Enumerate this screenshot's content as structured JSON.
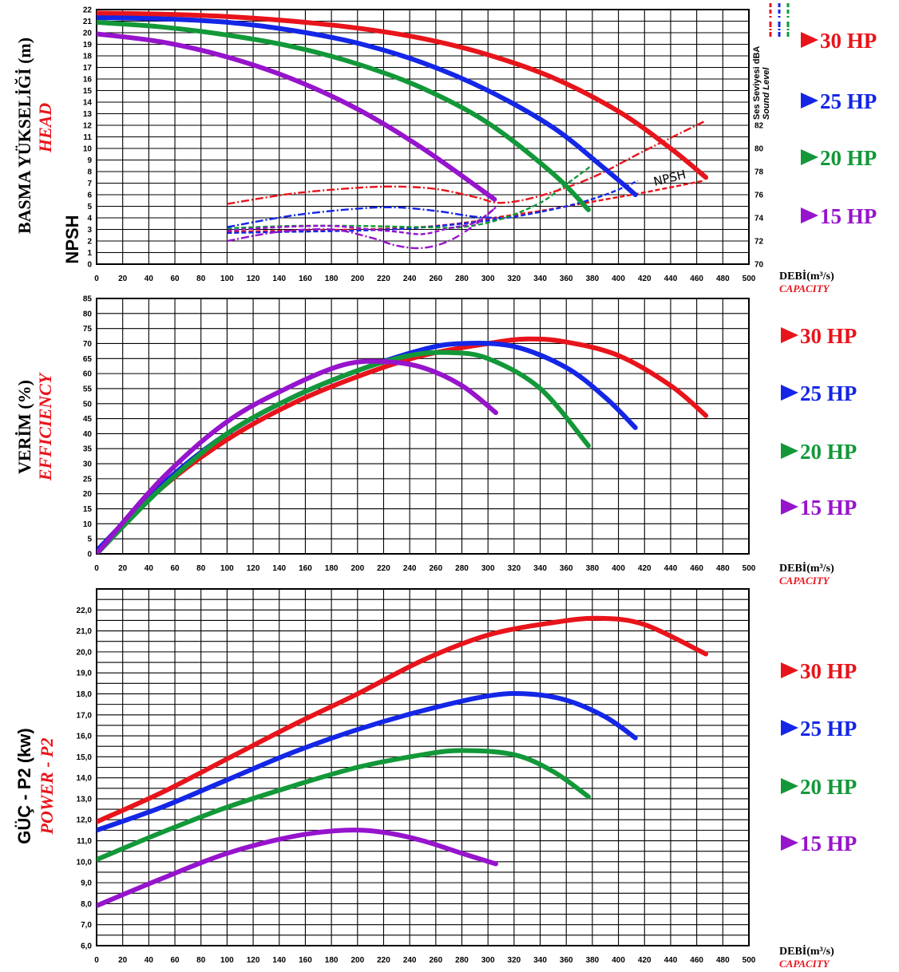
{
  "colors": {
    "hp30": "#e8141b",
    "hp25": "#1426e6",
    "hp20": "#139839",
    "hp15": "#9614cc",
    "grid": "#000000"
  },
  "legend": [
    "30  HP",
    "25  HP",
    "20 HP",
    "15 HP"
  ],
  "x_axis": {
    "title_tr": "DEBİ(m³/s)",
    "title_en": "CAPACITY",
    "ticks": [
      "0",
      "20",
      "40",
      "60",
      "80",
      "100",
      "120",
      "140",
      "160",
      "180",
      "200",
      "220",
      "240",
      "260",
      "280",
      "300",
      "320",
      "340",
      "360",
      "380",
      "400",
      "420",
      "440",
      "460",
      "480",
      "500"
    ]
  },
  "chart_data": [
    {
      "type": "line",
      "ylabel_tr": "BASMA YÜKSELİĞİ (m)",
      "ylabel_en": "HEAD",
      "ylabel_npsh": "NPSH",
      "right_axis_label_tr": "Ses Seviyesi dBA",
      "right_axis_label_en": "Sound Level",
      "npsh_annotation": "NPSH",
      "xlim": [
        0,
        500
      ],
      "ylim": [
        0,
        22
      ],
      "y_ticks": [
        "0",
        "1",
        "2",
        "3",
        "4",
        "5",
        "6",
        "7",
        "8",
        "9",
        "10",
        "11",
        "12",
        "13",
        "14",
        "15",
        "16",
        "17",
        "18",
        "19",
        "20",
        "21",
        "22"
      ],
      "right_ticks": [
        "70",
        "72",
        "74",
        "76",
        "78",
        "80",
        "82"
      ],
      "right_ylim": [
        70,
        92
      ],
      "series": [
        {
          "name": "30  HP",
          "x": [
            0,
            50,
            100,
            150,
            200,
            250,
            300,
            350,
            400,
            440,
            467
          ],
          "y": [
            21.7,
            21.6,
            21.4,
            21.0,
            20.4,
            19.5,
            18.1,
            16.1,
            13.2,
            10.0,
            7.5
          ]
        },
        {
          "name": "25  HP",
          "x": [
            0,
            50,
            100,
            150,
            200,
            250,
            300,
            350,
            390,
            413
          ],
          "y": [
            21.3,
            21.2,
            20.9,
            20.2,
            19.1,
            17.4,
            15.0,
            11.8,
            8.2,
            6.0
          ]
        },
        {
          "name": "20 HP",
          "x": [
            0,
            50,
            100,
            150,
            200,
            250,
            300,
            350,
            377
          ],
          "y": [
            20.9,
            20.5,
            19.8,
            18.8,
            17.3,
            15.2,
            12.2,
            7.8,
            4.7
          ]
        },
        {
          "name": "15 HP",
          "x": [
            0,
            50,
            100,
            150,
            200,
            250,
            305
          ],
          "y": [
            19.9,
            19.2,
            17.9,
            16.0,
            13.4,
            10.0,
            5.6
          ]
        }
      ],
      "npsh": [
        {
          "name": "30  HP",
          "x": [
            100,
            150,
            200,
            230,
            260,
            290,
            310,
            340,
            380,
            420,
            465
          ],
          "y": [
            2.8,
            2.9,
            3.0,
            3.1,
            3.3,
            3.7,
            4.1,
            4.6,
            5.4,
            6.2,
            7.2
          ]
        },
        {
          "name": "25  HP",
          "x": [
            100,
            150,
            200,
            240,
            280,
            320,
            360,
            390,
            415
          ],
          "y": [
            2.7,
            2.8,
            2.9,
            3.1,
            3.5,
            4.1,
            5.0,
            6.0,
            7.2
          ]
        },
        {
          "name": "20 HP",
          "x": [
            100,
            150,
            200,
            250,
            280,
            310,
            340,
            360,
            378
          ],
          "y": [
            3.1,
            3.3,
            3.3,
            3.2,
            3.2,
            3.9,
            5.3,
            6.9,
            8.4
          ]
        },
        {
          "name": "15 HP",
          "x": [
            100,
            140,
            180,
            210,
            230,
            250,
            270,
            290,
            306
          ],
          "y": [
            2.9,
            3.2,
            3.3,
            3.0,
            2.8,
            2.6,
            3.1,
            3.6,
            4.9
          ]
        }
      ],
      "sound_level": [
        {
          "name": "30  HP",
          "x": [
            100,
            150,
            200,
            230,
            260,
            290,
            310,
            340,
            380,
            420,
            467
          ],
          "y": [
            75.2,
            76.1,
            76.6,
            76.7,
            76.5,
            75.8,
            75.3,
            75.9,
            77.5,
            79.8,
            82.4
          ]
        },
        {
          "name": "25  HP",
          "x": [
            100,
            150,
            200,
            230,
            260,
            290,
            310
          ],
          "y": [
            73.2,
            74.2,
            74.8,
            74.9,
            74.6,
            74.1,
            74.0
          ]
        },
        {
          "name": "15 HP",
          "x": [
            100,
            140,
            180,
            210,
            230,
            250,
            270,
            290,
            306
          ],
          "y": [
            72.0,
            72.8,
            73.0,
            72.3,
            71.6,
            71.4,
            72.0,
            73.4,
            74.9
          ]
        }
      ]
    },
    {
      "type": "line",
      "ylabel_tr": "VERİM (%)",
      "ylabel_en": "EFFICIENCY",
      "xlim": [
        0,
        500
      ],
      "ylim": [
        0,
        85
      ],
      "y_ticks": [
        "0",
        "5",
        "10",
        "15",
        "20",
        "25",
        "30",
        "35",
        "40",
        "45",
        "50",
        "55",
        "60",
        "65",
        "70",
        "75",
        "80",
        "85"
      ],
      "series": [
        {
          "name": "30  HP",
          "x": [
            0,
            50,
            100,
            150,
            200,
            250,
            300,
            330,
            360,
            400,
            440,
            467
          ],
          "y": [
            1,
            22,
            38,
            50,
            59,
            66,
            70,
            71.5,
            70.5,
            66,
            56,
            46
          ]
        },
        {
          "name": "25  HP",
          "x": [
            0,
            50,
            100,
            150,
            200,
            250,
            280,
            320,
            360,
            390,
            413
          ],
          "y": [
            1,
            23,
            40,
            52,
            61,
            68,
            70,
            69,
            62,
            52,
            42
          ]
        },
        {
          "name": "20 HP",
          "x": [
            0,
            50,
            100,
            150,
            200,
            240,
            270,
            300,
            340,
            377
          ],
          "y": [
            0,
            22,
            40,
            52,
            61,
            66,
            67,
            65,
            55,
            36
          ]
        },
        {
          "name": "15 HP",
          "x": [
            0,
            50,
            100,
            150,
            190,
            220,
            250,
            280,
            306
          ],
          "y": [
            0,
            25,
            44,
            56,
            63,
            64,
            62,
            56,
            47
          ]
        }
      ]
    },
    {
      "type": "line",
      "ylabel_tr": "GÜÇ - P2 (kw)",
      "ylabel_en": "POWER - P2",
      "xlim": [
        0,
        500
      ],
      "ylim": [
        6,
        23
      ],
      "y_ticks": [
        "6,0",
        "7,0",
        "8,0",
        "9,0",
        "10,0",
        "11,0",
        "12,0",
        "13,0",
        "14,0",
        "15,0",
        "16,0",
        "17,0",
        "18,0",
        "19,0",
        "20,0",
        "21,0",
        "22,0"
      ],
      "series": [
        {
          "name": "30  HP",
          "x": [
            0,
            50,
            100,
            150,
            200,
            250,
            300,
            350,
            385,
            420,
            467
          ],
          "y": [
            11.9,
            13.3,
            14.9,
            16.5,
            18.0,
            19.6,
            20.8,
            21.4,
            21.6,
            21.3,
            19.9
          ]
        },
        {
          "name": "25  HP",
          "x": [
            0,
            50,
            100,
            150,
            200,
            250,
            300,
            330,
            360,
            390,
            413
          ],
          "y": [
            11.5,
            12.6,
            13.9,
            15.2,
            16.3,
            17.2,
            17.9,
            18.0,
            17.7,
            16.9,
            15.9
          ]
        },
        {
          "name": "20 HP",
          "x": [
            0,
            50,
            100,
            150,
            200,
            250,
            280,
            320,
            350,
            377
          ],
          "y": [
            10.1,
            11.4,
            12.6,
            13.6,
            14.5,
            15.1,
            15.3,
            15.1,
            14.3,
            13.1
          ]
        },
        {
          "name": "15 HP",
          "x": [
            0,
            50,
            100,
            150,
            190,
            220,
            250,
            280,
            306
          ],
          "y": [
            7.9,
            9.2,
            10.4,
            11.2,
            11.5,
            11.4,
            11.0,
            10.4,
            9.9
          ]
        }
      ]
    }
  ]
}
